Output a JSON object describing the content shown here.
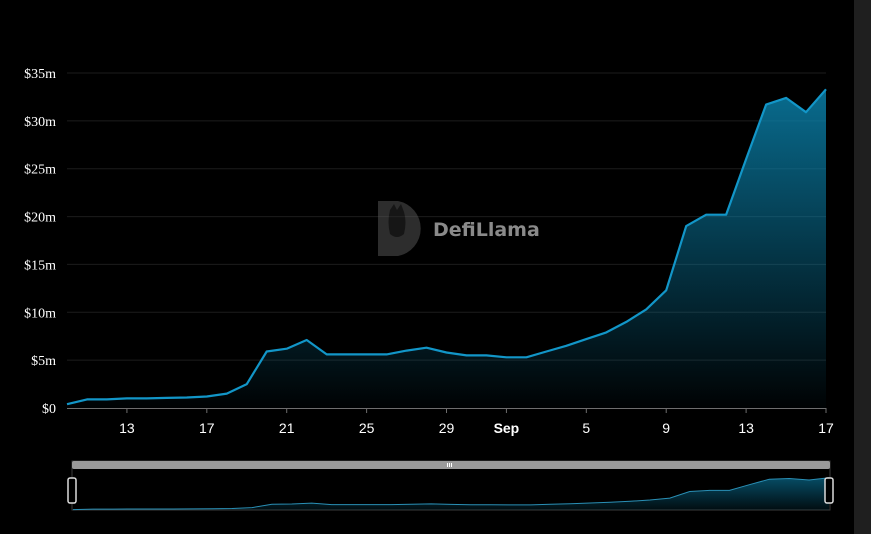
{
  "chart_data": {
    "type": "area",
    "title": "",
    "xlabel": "",
    "ylabel": "",
    "x": [
      "Aug 10",
      "Aug 11",
      "Aug 12",
      "Aug 13",
      "Aug 14",
      "Aug 15",
      "Aug 16",
      "Aug 17",
      "Aug 18",
      "Aug 19",
      "Aug 20",
      "Aug 21",
      "Aug 22",
      "Aug 23",
      "Aug 24",
      "Aug 25",
      "Aug 26",
      "Aug 27",
      "Aug 28",
      "Aug 29",
      "Aug 30",
      "Aug 31",
      "Sep 1",
      "Sep 2",
      "Sep 3",
      "Sep 4",
      "Sep 5",
      "Sep 6",
      "Sep 7",
      "Sep 8",
      "Sep 9",
      "Sep 10",
      "Sep 11",
      "Sep 12",
      "Sep 13",
      "Sep 14",
      "Sep 15",
      "Sep 16",
      "Sep 17"
    ],
    "series": [
      {
        "values": [
          0.4,
          0.9,
          0.9,
          1.0,
          1.0,
          1.05,
          1.1,
          1.2,
          1.5,
          2.5,
          5.9,
          6.2,
          7.1,
          5.6,
          5.6,
          5.6,
          5.6,
          6.0,
          6.3,
          5.8,
          5.5,
          5.5,
          5.3,
          5.3,
          5.9,
          6.5,
          7.2,
          7.9,
          9.0,
          10.3,
          12.3,
          19.0,
          20.2,
          20.2,
          26.0,
          31.7,
          32.4,
          30.9,
          33.3
        ]
      }
    ],
    "ylim": [
      0,
      35
    ],
    "y_ticks": [
      "$0",
      "$5m",
      "$10m",
      "$15m",
      "$20m",
      "$25m",
      "$30m",
      "$35m"
    ],
    "x_ticks": [
      {
        "label": "13",
        "index": 3
      },
      {
        "label": "17",
        "index": 7
      },
      {
        "label": "21",
        "index": 11
      },
      {
        "label": "25",
        "index": 15
      },
      {
        "label": "29",
        "index": 19
      },
      {
        "label": "Sep",
        "index": 22,
        "bold": true
      },
      {
        "label": "5",
        "index": 26
      },
      {
        "label": "9",
        "index": 30
      },
      {
        "label": "13",
        "index": 34
      },
      {
        "label": "17",
        "index": 38
      }
    ],
    "grid": true,
    "line_color": "#1296c8",
    "fill_color": "#0a7fa8"
  },
  "watermark": {
    "text": "DefiLlama",
    "icon": "llama-logo-icon"
  },
  "zoom_slider": {
    "handle_icon": "grip-icon",
    "range": [
      0,
      1
    ]
  }
}
